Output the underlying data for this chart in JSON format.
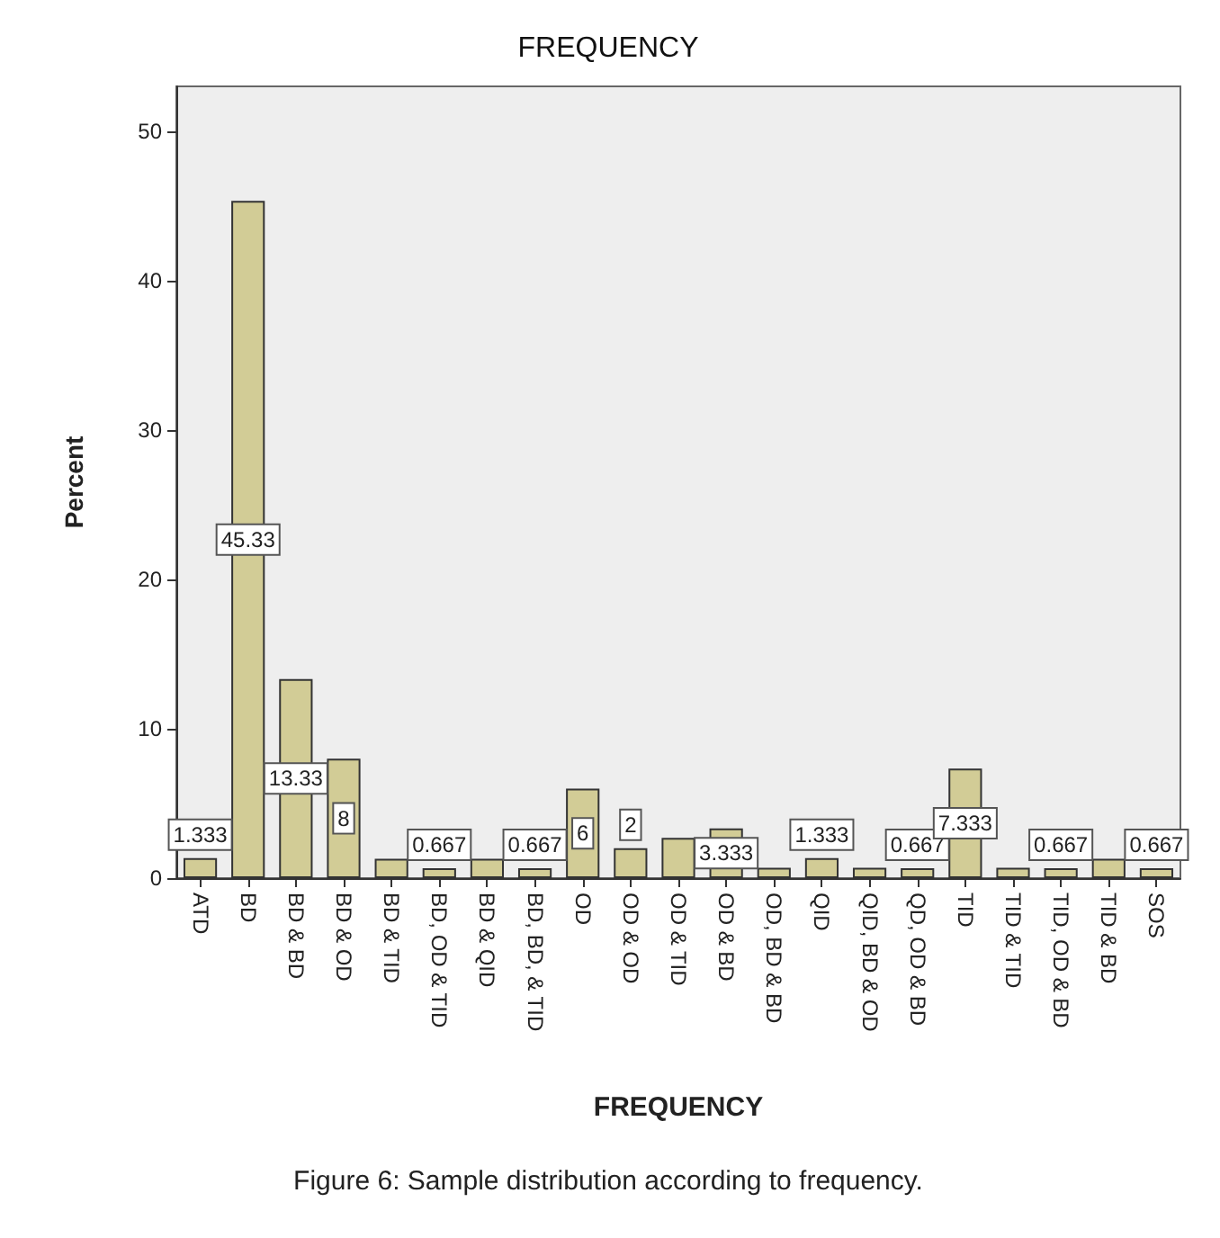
{
  "chart_data": {
    "type": "bar",
    "title": "FREQUENCY",
    "xlabel": "FREQUENCY",
    "ylabel": "Percent",
    "categories": [
      "ATD",
      "BD",
      "BD & BD",
      "BD & OD",
      "BD & TID",
      "BD, OD & TID",
      "BD & QID",
      "BD, BD, & TID",
      "OD",
      "OD & OD",
      "OD & TID",
      "OD & BD",
      "OD, BD & BD",
      "QID",
      "QID, BD & OD",
      "QD, OD & BD",
      "TID",
      "TID & TID",
      "TID, OD & BD",
      "TID & BD",
      "SOS"
    ],
    "values": [
      1.333,
      45.33,
      13.33,
      8,
      1.3,
      0.667,
      1.3,
      0.667,
      6,
      2,
      2.7,
      3.333,
      0.7,
      1.333,
      0.7,
      0.667,
      7.333,
      0.7,
      0.667,
      1.3,
      0.667
    ],
    "value_labels": [
      "1.333",
      "45.33",
      "13.33",
      "8",
      null,
      "0.667",
      null,
      "0.667",
      "6",
      "2",
      null,
      "3.333",
      null,
      "1.333",
      null,
      "0.667",
      "7.333",
      null,
      "0.667",
      null,
      "0.667"
    ],
    "color": "#d2cc96",
    "ylim": [
      0,
      53
    ],
    "yticks": [
      0,
      10,
      20,
      30,
      40,
      50
    ],
    "grid": false,
    "annotations": [
      "Figure 6: Sample distribution according to frequency."
    ]
  }
}
